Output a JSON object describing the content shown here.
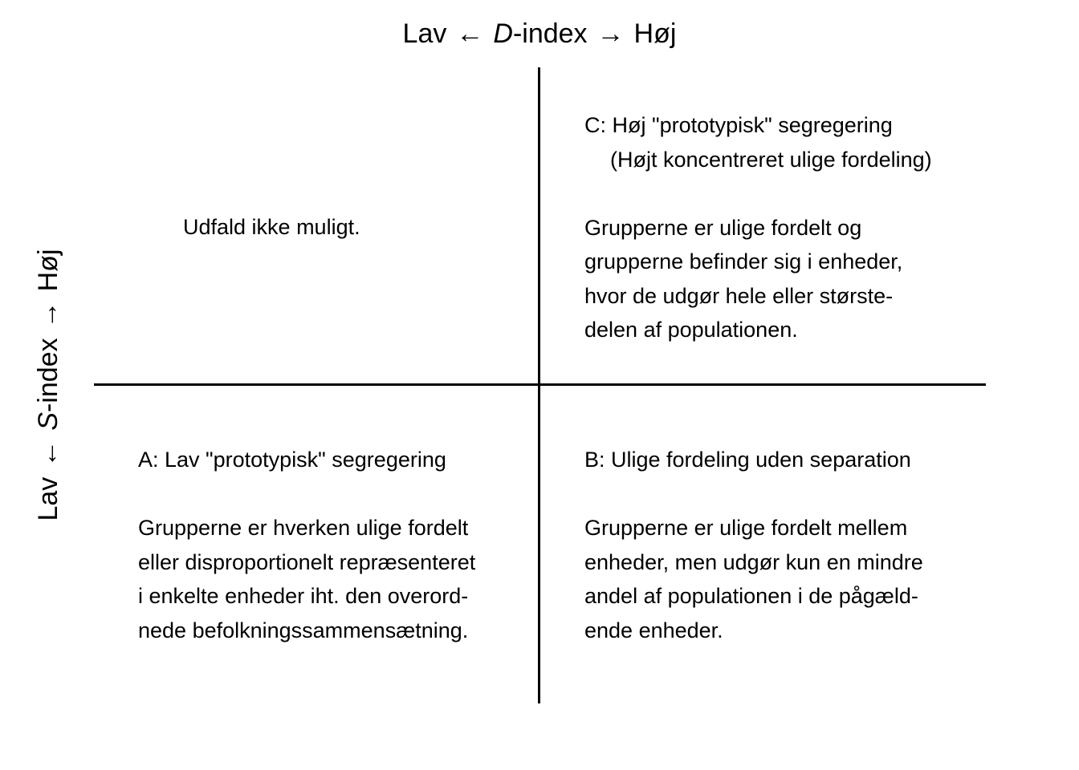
{
  "axes": {
    "top": {
      "low": "Lav",
      "arrow_left": "←",
      "variable": "D",
      "suffix": "-index",
      "arrow_right": "→",
      "high": "Høj"
    },
    "left": {
      "low": "Lav",
      "arrow_left": "←",
      "variable": "S",
      "suffix": "-index",
      "arrow_right": "→",
      "high": "Høj"
    }
  },
  "quadrants": {
    "top_left": {
      "text": "Udfald ikke muligt."
    },
    "top_right": {
      "title": "C: Høj \"prototypisk\" segregering",
      "subtitle": "(Højt koncentreret ulige fordeling)",
      "lines": [
        "Grupperne er ulige fordelt og",
        "grupperne befinder sig i enheder,",
        "hvor de udgør hele eller største-",
        "delen af populationen."
      ]
    },
    "bottom_left": {
      "title": "A: Lav \"prototypisk\" segregering",
      "lines": [
        "Grupperne er hverken ulige fordelt",
        "eller disproportionelt repræsenteret",
        "i enkelte enheder iht. den overord-",
        "nede befolkningssammensætning."
      ]
    },
    "bottom_right": {
      "title": "B: Ulige fordeling uden separation",
      "lines": [
        "Grupperne er ulige fordelt mellem",
        "enheder, men udgør kun en mindre",
        "andel af populationen i de pågæld-",
        "ende enheder."
      ]
    }
  }
}
